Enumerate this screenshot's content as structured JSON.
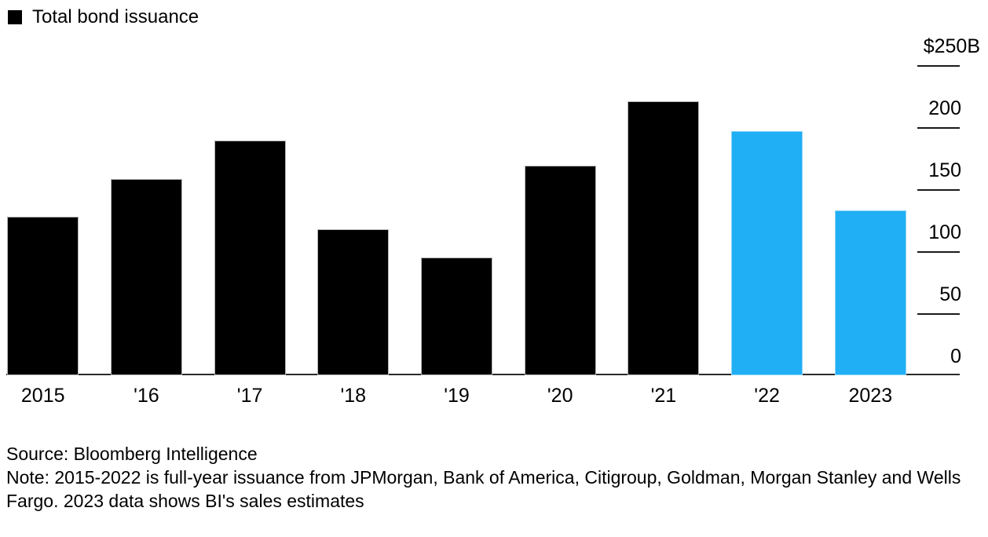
{
  "legend": {
    "label": "Total bond issuance",
    "swatch_color": "#000000"
  },
  "chart_data": {
    "type": "bar",
    "title": "Total bond issuance",
    "categories": [
      "2015",
      "'16",
      "'17",
      "'18",
      "'19",
      "'20",
      "'21",
      "'22",
      "2023"
    ],
    "values": [
      128,
      158,
      189,
      118,
      95,
      169,
      221,
      197,
      133
    ],
    "bar_colors": [
      "#000000",
      "#000000",
      "#000000",
      "#000000",
      "#000000",
      "#000000",
      "#000000",
      "#20AEF4",
      "#20AEF4"
    ],
    "unit": "$B",
    "xlabel": "",
    "ylabel": "",
    "ylim": [
      0,
      250
    ],
    "yticks": [
      250,
      200,
      150,
      100,
      50,
      0
    ],
    "ytick_labels": [
      "$250B",
      "200",
      "150",
      "100",
      "50",
      "0"
    ],
    "axis_side": "right",
    "legend_position": "top-left",
    "grid": false
  },
  "footer": {
    "source": "Source: Bloomberg Intelligence",
    "note": "Note: 2015-2022 is full-year issuance from JPMorgan, Bank of America, Citigroup, Goldman, Morgan Stanley and Wells Fargo. 2023 data shows BI's sales estimates"
  },
  "colors": {
    "bar_black": "#000000",
    "bar_highlight_blue": "#20AEF4",
    "axis_line": "#2b2b2b",
    "text": "#000000",
    "background": "#ffffff"
  }
}
